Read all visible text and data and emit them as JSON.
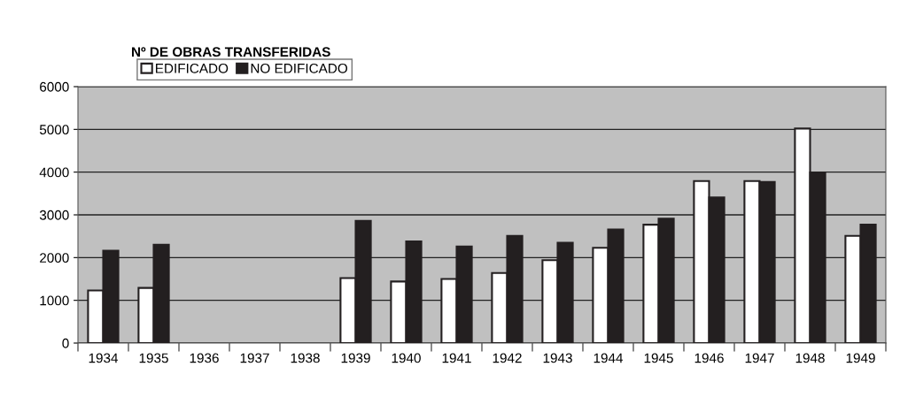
{
  "chart_data": {
    "type": "bar",
    "title": "Nº DE OBRAS TRANSFERIDAS",
    "categories": [
      "1934",
      "1935",
      "1936",
      "1937",
      "1938",
      "1939",
      "1940",
      "1941",
      "1942",
      "1943",
      "1944",
      "1945",
      "1946",
      "1947",
      "1948",
      "1949"
    ],
    "series": [
      {
        "name": "EDIFICADO",
        "color": "#ffffff",
        "values": [
          1230,
          1290,
          null,
          null,
          null,
          1520,
          1440,
          1500,
          1640,
          1940,
          2230,
          2770,
          3790,
          3790,
          5020,
          2510
        ]
      },
      {
        "name": "NO EDIFICADO",
        "color": "#231f20",
        "values": [
          2160,
          2300,
          null,
          null,
          null,
          2860,
          2380,
          2260,
          2510,
          2350,
          2660,
          2910,
          3410,
          3770,
          3990,
          2770
        ]
      }
    ],
    "ylim": [
      0,
      6000
    ],
    "yticks": [
      0,
      1000,
      2000,
      3000,
      4000,
      5000,
      6000
    ],
    "grid": "y",
    "legend": "top left"
  }
}
